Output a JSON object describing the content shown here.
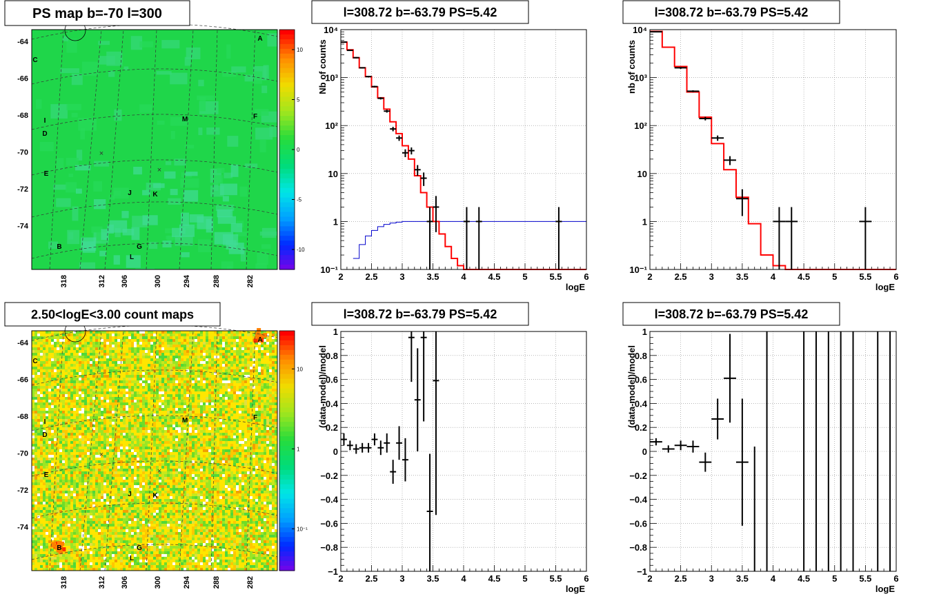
{
  "palette": {
    "hist_red": "#ff0000",
    "model_blue": "#0000cc",
    "data_black": "#000000",
    "map_green": "#1fd64a",
    "grid": "#888888"
  },
  "chart_data": [
    {
      "panel": "ps-map",
      "type": "heatmap",
      "title": "PS map b=-70 l=300",
      "xlabel": "",
      "ylabel": "",
      "x_ticks": [
        "318",
        "312",
        "306",
        "300",
        "294",
        "288",
        "282"
      ],
      "y_ticks": [
        "-64",
        "-66",
        "-68",
        "-70",
        "-72",
        "-74"
      ],
      "colorbar_ticks": [
        "10",
        "5",
        "0",
        "-5",
        "-10"
      ],
      "colorbar_range": [
        -12,
        12
      ],
      "colorbar_scale": "linear",
      "source_labels": [
        "A",
        "B",
        "C",
        "D",
        "E",
        "F",
        "G",
        "I",
        "J",
        "K",
        "L",
        "M"
      ],
      "background_value": 0.5
    },
    {
      "panel": "count-map",
      "type": "heatmap",
      "title": "2.50<logE<3.00 count maps",
      "xlabel": "",
      "ylabel": "",
      "x_ticks": [
        "318",
        "312",
        "306",
        "300",
        "294",
        "288",
        "282"
      ],
      "y_ticks": [
        "-64",
        "-66",
        "-68",
        "-70",
        "-72",
        "-74"
      ],
      "colorbar_ticks": [
        "10",
        "1",
        "10⁻¹"
      ],
      "colorbar_range": [
        0.03,
        30
      ],
      "colorbar_scale": "log",
      "source_labels": [
        "A",
        "B",
        "C",
        "D",
        "E",
        "F",
        "G",
        "I",
        "J",
        "K",
        "L",
        "M"
      ]
    },
    {
      "panel": "spectrum-left",
      "type": "line",
      "title": "l=308.72 b=-63.79 PS=5.42",
      "xlabel": "logE",
      "ylabel": "Nb of counts",
      "xlim": [
        2,
        6
      ],
      "ylim": [
        0.1,
        10000
      ],
      "yscale": "log",
      "x_ticks": [
        "2",
        "2.5",
        "3",
        "3.5",
        "4",
        "4.5",
        "5",
        "5.5",
        "6"
      ],
      "y_ticks": [
        "10⁻¹",
        "1",
        "10",
        "10²",
        "10³",
        "10⁴"
      ],
      "grid": true,
      "series": [
        {
          "style": "step-red",
          "edges": [
            2,
            2.1,
            2.2,
            2.3,
            2.4,
            2.5,
            2.6,
            2.7,
            2.8,
            2.9,
            3.0,
            3.1,
            3.2,
            3.3,
            3.4,
            3.5,
            3.6,
            3.7,
            3.8,
            3.9,
            4.0,
            6.0
          ],
          "values": [
            5500,
            3800,
            2600,
            1600,
            1050,
            640,
            380,
            220,
            120,
            68,
            38,
            20,
            9,
            4,
            2,
            1,
            0.55,
            0.3,
            0.17,
            0.12,
            0.1
          ]
        },
        {
          "style": "step-blue",
          "edges": [
            2.2,
            2.3,
            2.4,
            2.5,
            2.6,
            2.7,
            2.8,
            2.9,
            3.0,
            6.0
          ],
          "values": [
            0.17,
            0.33,
            0.5,
            0.65,
            0.78,
            0.87,
            0.93,
            0.97,
            1.0
          ]
        },
        {
          "style": "points",
          "points": [
            {
              "x": 2.05,
              "y": 5500,
              "ylo": 5400,
              "yhi": 5600,
              "dx": 0.05
            },
            {
              "x": 2.15,
              "y": 3700,
              "ylo": 3600,
              "yhi": 3800,
              "dx": 0.05
            },
            {
              "x": 2.25,
              "y": 2600,
              "ylo": 2520,
              "yhi": 2680,
              "dx": 0.05
            },
            {
              "x": 2.35,
              "y": 1600,
              "ylo": 1550,
              "yhi": 1650,
              "dx": 0.05
            },
            {
              "x": 2.45,
              "y": 1050,
              "ylo": 1010,
              "yhi": 1090,
              "dx": 0.05
            },
            {
              "x": 2.55,
              "y": 650,
              "ylo": 625,
              "yhi": 675,
              "dx": 0.05
            },
            {
              "x": 2.65,
              "y": 370,
              "ylo": 350,
              "yhi": 390,
              "dx": 0.05
            },
            {
              "x": 2.75,
              "y": 200,
              "ylo": 186,
              "yhi": 214,
              "dx": 0.05
            },
            {
              "x": 2.85,
              "y": 85,
              "ylo": 76,
              "yhi": 94,
              "dx": 0.05
            },
            {
              "x": 2.95,
              "y": 55,
              "ylo": 48,
              "yhi": 62,
              "dx": 0.05
            },
            {
              "x": 3.05,
              "y": 27,
              "ylo": 22,
              "yhi": 32,
              "dx": 0.05
            },
            {
              "x": 3.15,
              "y": 30,
              "ylo": 25,
              "yhi": 35,
              "dx": 0.05
            },
            {
              "x": 3.25,
              "y": 12,
              "ylo": 9,
              "yhi": 15,
              "dx": 0.05
            },
            {
              "x": 3.35,
              "y": 8,
              "ylo": 5.5,
              "yhi": 10.5,
              "dx": 0.05
            },
            {
              "x": 3.45,
              "y": 1,
              "ylo": 0.1,
              "yhi": 2,
              "dx": 0.05
            },
            {
              "x": 3.55,
              "y": 2,
              "ylo": 0.6,
              "yhi": 3.4,
              "dx": 0.05
            },
            {
              "x": 4.05,
              "y": 1,
              "ylo": 0.1,
              "yhi": 2,
              "dx": 0.05
            },
            {
              "x": 4.25,
              "y": 1,
              "ylo": 0.1,
              "yhi": 2,
              "dx": 0.05
            },
            {
              "x": 5.55,
              "y": 1,
              "ylo": 0.1,
              "yhi": 2,
              "dx": 0.05
            }
          ]
        }
      ]
    },
    {
      "panel": "spectrum-right",
      "type": "line",
      "title": "l=308.72 b=-63.79 PS=5.42",
      "xlabel": "logE",
      "ylabel": "nb of counts",
      "xlim": [
        2,
        6
      ],
      "ylim": [
        0.1,
        10000
      ],
      "yscale": "log",
      "x_ticks": [
        "2",
        "2.5",
        "3",
        "3.5",
        "4",
        "4.5",
        "5",
        "5.5",
        "6"
      ],
      "y_ticks": [
        "10⁻¹",
        "1",
        "10",
        "10²",
        "10³",
        "10⁴"
      ],
      "grid": true,
      "series": [
        {
          "style": "step-red",
          "edges": [
            2,
            2.2,
            2.4,
            2.6,
            2.8,
            3.0,
            3.2,
            3.4,
            3.6,
            3.8,
            4.0,
            4.2,
            6.0
          ],
          "values": [
            9200,
            4300,
            1700,
            500,
            150,
            42,
            12,
            3.2,
            0.9,
            0.2,
            0.12,
            0.1
          ]
        },
        {
          "style": "points",
          "points": [
            {
              "x": 2.1,
              "y": 9000,
              "ylo": 8800,
              "yhi": 9200,
              "dx": 0.1
            },
            {
              "x": 2.5,
              "y": 1600,
              "ylo": 1520,
              "yhi": 1680,
              "dx": 0.1
            },
            {
              "x": 2.7,
              "y": 520,
              "ylo": 497,
              "yhi": 543,
              "dx": 0.1
            },
            {
              "x": 2.9,
              "y": 140,
              "ylo": 128,
              "yhi": 152,
              "dx": 0.1
            },
            {
              "x": 3.1,
              "y": 55,
              "ylo": 48,
              "yhi": 62,
              "dx": 0.1
            },
            {
              "x": 3.3,
              "y": 19,
              "ylo": 15,
              "yhi": 23,
              "dx": 0.1
            },
            {
              "x": 3.5,
              "y": 3,
              "ylo": 1.3,
              "yhi": 4.7,
              "dx": 0.1
            },
            {
              "x": 4.1,
              "y": 1,
              "ylo": 0.1,
              "yhi": 2,
              "dx": 0.1
            },
            {
              "x": 4.3,
              "y": 1,
              "ylo": 0.1,
              "yhi": 2,
              "dx": 0.1
            },
            {
              "x": 5.5,
              "y": 1,
              "ylo": 0.1,
              "yhi": 2,
              "dx": 0.1
            }
          ]
        }
      ]
    },
    {
      "panel": "residual-left",
      "type": "scatter",
      "title": "l=308.72 b=-63.79 PS=5.42",
      "xlabel": "logE",
      "ylabel": "(data-model)/model",
      "xlim": [
        2,
        6
      ],
      "ylim": [
        -1,
        1
      ],
      "x_ticks": [
        "2",
        "2.5",
        "3",
        "3.5",
        "4",
        "4.5",
        "5",
        "5.5",
        "6"
      ],
      "y_ticks": [
        "1",
        "0.8",
        "0.6",
        "0.4",
        "0.2",
        "0",
        "−0.2",
        "−0.4",
        "−0.6",
        "−0.8",
        "−1"
      ],
      "grid": true,
      "points": [
        {
          "x": 2.05,
          "y": 0.1,
          "ylo": 0.05,
          "yhi": 0.15,
          "dx": 0.05
        },
        {
          "x": 2.15,
          "y": 0.05,
          "ylo": 0.01,
          "yhi": 0.09,
          "dx": 0.05
        },
        {
          "x": 2.25,
          "y": 0.02,
          "ylo": -0.02,
          "yhi": 0.06,
          "dx": 0.05
        },
        {
          "x": 2.35,
          "y": 0.03,
          "ylo": -0.01,
          "yhi": 0.07,
          "dx": 0.05
        },
        {
          "x": 2.45,
          "y": 0.03,
          "ylo": -0.01,
          "yhi": 0.07,
          "dx": 0.05
        },
        {
          "x": 2.55,
          "y": 0.1,
          "ylo": 0.05,
          "yhi": 0.15,
          "dx": 0.05
        },
        {
          "x": 2.65,
          "y": 0.03,
          "ylo": -0.03,
          "yhi": 0.09,
          "dx": 0.05
        },
        {
          "x": 2.75,
          "y": 0.07,
          "ylo": -0.01,
          "yhi": 0.15,
          "dx": 0.05
        },
        {
          "x": 2.85,
          "y": -0.17,
          "ylo": -0.27,
          "yhi": -0.07,
          "dx": 0.05
        },
        {
          "x": 2.95,
          "y": 0.07,
          "ylo": -0.07,
          "yhi": 0.21,
          "dx": 0.05
        },
        {
          "x": 3.05,
          "y": -0.07,
          "ylo": -0.25,
          "yhi": 0.11,
          "dx": 0.05
        },
        {
          "x": 3.15,
          "y": 0.95,
          "ylo": 0.58,
          "yhi": 1.0,
          "dx": 0.05
        },
        {
          "x": 3.25,
          "y": 0.43,
          "ylo": 0.0,
          "yhi": 0.86,
          "dx": 0.05
        },
        {
          "x": 3.35,
          "y": 0.95,
          "ylo": 0.25,
          "yhi": 1.0,
          "dx": 0.05
        },
        {
          "x": 3.45,
          "y": -0.5,
          "ylo": -1.0,
          "yhi": -0.02,
          "dx": 0.05
        },
        {
          "x": 3.55,
          "y": 0.59,
          "ylo": -0.53,
          "yhi": 1.0,
          "dx": 0.05
        }
      ]
    },
    {
      "panel": "residual-right",
      "type": "scatter",
      "title": "l=308.72 b=-63.79 PS=5.42",
      "xlabel": "logE",
      "ylabel": "(data-model)/model",
      "xlim": [
        2,
        6
      ],
      "ylim": [
        -1,
        1
      ],
      "x_ticks": [
        "2",
        "2.5",
        "3",
        "3.5",
        "4",
        "4.5",
        "5",
        "5.5",
        "6"
      ],
      "y_ticks": [
        "1",
        "0.8",
        "0.6",
        "0.4",
        "0.2",
        "0",
        "−0.2",
        "−0.4",
        "−0.6",
        "−0.8",
        "−1"
      ],
      "grid": true,
      "points": [
        {
          "x": 2.1,
          "y": 0.08,
          "ylo": 0.05,
          "yhi": 0.11,
          "dx": 0.1
        },
        {
          "x": 2.3,
          "y": 0.02,
          "ylo": -0.01,
          "yhi": 0.05,
          "dx": 0.1
        },
        {
          "x": 2.5,
          "y": 0.05,
          "ylo": 0.01,
          "yhi": 0.09,
          "dx": 0.1
        },
        {
          "x": 2.7,
          "y": 0.04,
          "ylo": -0.01,
          "yhi": 0.09,
          "dx": 0.1
        },
        {
          "x": 2.9,
          "y": -0.09,
          "ylo": -0.17,
          "yhi": -0.01,
          "dx": 0.1
        },
        {
          "x": 3.1,
          "y": 0.27,
          "ylo": 0.1,
          "yhi": 0.44,
          "dx": 0.1
        },
        {
          "x": 3.3,
          "y": 0.61,
          "ylo": 0.24,
          "yhi": 0.98,
          "dx": 0.1
        },
        {
          "x": 3.5,
          "y": -0.09,
          "ylo": -0.62,
          "yhi": 0.44,
          "dx": 0.1
        },
        {
          "x": 3.7,
          "y": -1.0,
          "ylo": -1.0,
          "yhi": 0.04,
          "dx": 0.0
        },
        {
          "x": 3.9,
          "y": -1.0,
          "ylo": -1.0,
          "yhi": 1.0,
          "dx": 0.0
        },
        {
          "x": 4.5,
          "y": -1.0,
          "ylo": -1.0,
          "yhi": 1.0,
          "dx": 0.0
        },
        {
          "x": 4.7,
          "y": -1.0,
          "ylo": -1.0,
          "yhi": 1.0,
          "dx": 0.0
        },
        {
          "x": 4.9,
          "y": -1.0,
          "ylo": -1.0,
          "yhi": 1.0,
          "dx": 0.0
        },
        {
          "x": 5.1,
          "y": -1.0,
          "ylo": -1.0,
          "yhi": 1.0,
          "dx": 0.0
        },
        {
          "x": 5.3,
          "y": -1.0,
          "ylo": -1.0,
          "yhi": 1.0,
          "dx": 0.0
        },
        {
          "x": 5.7,
          "y": -1.0,
          "ylo": -1.0,
          "yhi": 1.0,
          "dx": 0.0
        },
        {
          "x": 5.9,
          "y": -1.0,
          "ylo": -1.0,
          "yhi": 1.0,
          "dx": 0.0
        }
      ]
    }
  ]
}
